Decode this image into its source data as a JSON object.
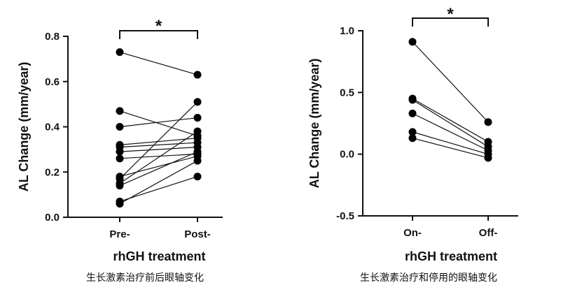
{
  "chart_data": [
    {
      "type": "scatter",
      "ylabel": "AL Change (mm/year)",
      "xlabel": "rhGH treatment",
      "categories": [
        "Pre-",
        "Post-"
      ],
      "ylim": [
        0,
        0.8
      ],
      "yticks": [
        "0.0",
        "0.2",
        "0.4",
        "0.6",
        "0.8"
      ],
      "significance": "*",
      "caption": "生长激素治疗前后眼轴变化",
      "pairs": [
        [
          0.73,
          0.63
        ],
        [
          0.47,
          0.36
        ],
        [
          0.4,
          0.44
        ],
        [
          0.32,
          0.35
        ],
        [
          0.31,
          0.33
        ],
        [
          0.29,
          0.31
        ],
        [
          0.26,
          0.28
        ],
        [
          0.18,
          0.27
        ],
        [
          0.17,
          0.51
        ],
        [
          0.15,
          0.38
        ],
        [
          0.14,
          0.29
        ],
        [
          0.07,
          0.18
        ],
        [
          0.06,
          0.25
        ]
      ]
    },
    {
      "type": "scatter",
      "ylabel": "AL Change (mm/year)",
      "xlabel": "rhGH treatment",
      "categories": [
        "On-",
        "Off-"
      ],
      "ylim": [
        -0.5,
        1.0
      ],
      "yticks": [
        "-0.5",
        "0.0",
        "0.5",
        "1.0"
      ],
      "significance": "*",
      "caption": "生长激素治疗和停用的眼轴变化",
      "pairs": [
        [
          0.91,
          0.26
        ],
        [
          0.45,
          0.1
        ],
        [
          0.44,
          0.06
        ],
        [
          0.33,
          0.03
        ],
        [
          0.18,
          0.0
        ],
        [
          0.13,
          -0.03
        ]
      ]
    }
  ]
}
